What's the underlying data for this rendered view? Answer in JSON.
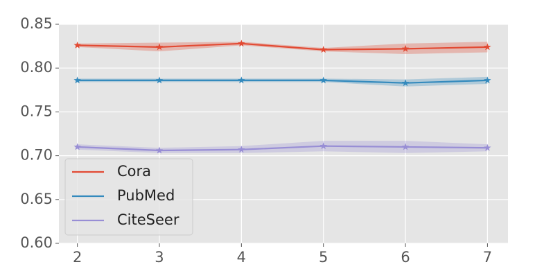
{
  "chart_data": {
    "type": "line",
    "title": "",
    "xlabel": "",
    "ylabel": "",
    "x": [
      2,
      3,
      4,
      5,
      6,
      7
    ],
    "xlim": [
      1.775,
      7.25
    ],
    "ylim": [
      0.6,
      0.85
    ],
    "xticks": [
      2,
      3,
      4,
      5,
      6,
      7
    ],
    "yticks": [
      0.6,
      0.65,
      0.7,
      0.75,
      0.8,
      0.85
    ],
    "ytick_labels": [
      "0.60",
      "0.65",
      "0.70",
      "0.75",
      "0.80",
      "0.85"
    ],
    "grid": true,
    "legend_position": "lower-left",
    "series": [
      {
        "name": "Cora",
        "color": "#E24A33",
        "marker": "star",
        "values": [
          0.826,
          0.824,
          0.828,
          0.821,
          0.822,
          0.824
        ],
        "lower": [
          0.824,
          0.819,
          0.826,
          0.819,
          0.816,
          0.818
        ],
        "upper": [
          0.828,
          0.829,
          0.83,
          0.823,
          0.828,
          0.83
        ]
      },
      {
        "name": "PubMed",
        "color": "#348ABD",
        "marker": "star",
        "values": [
          0.786,
          0.786,
          0.786,
          0.786,
          0.783,
          0.786
        ],
        "lower": [
          0.784,
          0.784,
          0.784,
          0.784,
          0.779,
          0.782
        ],
        "upper": [
          0.788,
          0.788,
          0.788,
          0.788,
          0.787,
          0.79
        ]
      },
      {
        "name": "CiteSeer",
        "color": "#988ED5",
        "marker": "star",
        "values": [
          0.71,
          0.706,
          0.707,
          0.711,
          0.71,
          0.709
        ],
        "lower": [
          0.707,
          0.703,
          0.703,
          0.705,
          0.703,
          0.705
        ],
        "upper": [
          0.713,
          0.709,
          0.711,
          0.717,
          0.717,
          0.713
        ]
      }
    ]
  }
}
